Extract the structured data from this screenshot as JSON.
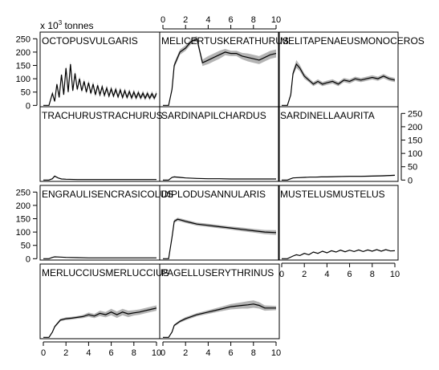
{
  "chart_data": {
    "type": "line",
    "ylabel_prefix": "x 10",
    "ylabel_exponent": "3",
    "ylabel_suffix": " tonnes",
    "x_ticks": [
      0,
      2,
      4,
      6,
      8,
      10
    ],
    "y_ticks": [
      0,
      50,
      100,
      150,
      200,
      250
    ],
    "xlim": [
      0,
      10
    ],
    "ylim": [
      -5,
      275
    ],
    "band_color": "#b4b4b4",
    "line_color": "#000000",
    "panels": [
      {
        "name": "OCTOPUSVULGARIS",
        "x": [
          0,
          0.5,
          0.8,
          1.0,
          1.2,
          1.4,
          1.6,
          1.8,
          2.0,
          2.2,
          2.4,
          2.6,
          2.8,
          3.0,
          3.2,
          3.4,
          3.6,
          3.8,
          4.0,
          4.2,
          4.4,
          4.6,
          4.8,
          5.0,
          5.2,
          5.4,
          5.6,
          5.8,
          6.0,
          6.2,
          6.4,
          6.6,
          6.8,
          7.0,
          7.2,
          7.4,
          7.6,
          7.8,
          8.0,
          8.2,
          8.4,
          8.6,
          8.8,
          9.0,
          9.2,
          9.4,
          9.6,
          9.8,
          10.0
        ],
        "y": [
          0,
          0,
          45,
          15,
          80,
          30,
          115,
          40,
          140,
          50,
          155,
          55,
          120,
          60,
          100,
          55,
          90,
          50,
          85,
          45,
          80,
          40,
          75,
          40,
          70,
          38,
          65,
          35,
          62,
          35,
          60,
          32,
          58,
          30,
          55,
          30,
          52,
          28,
          50,
          28,
          48,
          28,
          46,
          27,
          45,
          27,
          44,
          27,
          45
        ],
        "band": [
          0,
          0,
          3,
          2,
          5,
          3,
          6,
          4,
          8,
          5,
          10,
          6,
          10,
          8,
          10,
          8,
          10,
          8,
          10,
          8,
          10,
          8,
          10,
          8,
          10,
          8,
          10,
          8,
          10,
          8,
          10,
          8,
          10,
          8,
          10,
          8,
          10,
          8,
          10,
          8,
          10,
          8,
          10,
          8,
          10,
          8,
          10,
          8,
          10
        ]
      },
      {
        "name": "MELICERTUSKERATHURUS",
        "x": [
          0,
          0.5,
          0.8,
          1.0,
          1.5,
          2.0,
          2.5,
          3.0,
          3.5,
          4.0,
          4.5,
          5.0,
          5.5,
          6.0,
          6.5,
          7.0,
          7.5,
          8.0,
          8.5,
          9.0,
          9.5,
          10.0
        ],
        "y": [
          0,
          0,
          60,
          150,
          200,
          215,
          240,
          250,
          160,
          170,
          180,
          190,
          200,
          195,
          195,
          185,
          180,
          175,
          170,
          180,
          190,
          195
        ],
        "band": [
          0,
          0,
          5,
          10,
          10,
          10,
          10,
          10,
          12,
          15,
          15,
          15,
          12,
          10,
          10,
          12,
          15,
          15,
          15,
          15,
          15,
          15
        ]
      },
      {
        "name": "MELITAPENAEUSMONOCEROS",
        "x": [
          0,
          0.5,
          0.8,
          1.0,
          1.3,
          1.6,
          2.0,
          2.4,
          2.8,
          3.2,
          3.6,
          4.0,
          4.5,
          5.0,
          5.5,
          6.0,
          6.5,
          7.0,
          7.5,
          8.0,
          8.5,
          9.0,
          9.5,
          10.0
        ],
        "y": [
          0,
          0,
          40,
          120,
          155,
          140,
          110,
          95,
          80,
          90,
          80,
          85,
          90,
          80,
          95,
          90,
          100,
          95,
          100,
          105,
          100,
          110,
          100,
          95
        ],
        "band": [
          0,
          0,
          5,
          10,
          15,
          12,
          10,
          8,
          8,
          8,
          8,
          8,
          8,
          8,
          8,
          8,
          8,
          8,
          8,
          8,
          8,
          8,
          8,
          8
        ]
      },
      {
        "name": "TRACHURUSTRACHURUS",
        "x": [
          0,
          0.5,
          0.8,
          1.0,
          1.3,
          1.6,
          2.0,
          3.0,
          4.0,
          5.0,
          6.0,
          7.0,
          8.0,
          9.0,
          10.0
        ],
        "y": [
          0,
          0,
          5,
          15,
          8,
          4,
          3,
          2,
          2,
          2,
          2,
          2,
          2,
          2,
          2
        ],
        "band": [
          0,
          0,
          1,
          2,
          1,
          1,
          1,
          1,
          1,
          1,
          1,
          1,
          1,
          1,
          1
        ]
      },
      {
        "name": "SARDINAPILCHARDUS",
        "x": [
          0,
          0.5,
          0.8,
          1.0,
          1.5,
          2.0,
          3.0,
          4.0,
          5.0,
          6.0,
          7.0,
          8.0,
          9.0,
          10.0
        ],
        "y": [
          0,
          0,
          10,
          12,
          10,
          8,
          6,
          5,
          5,
          4,
          4,
          4,
          4,
          4
        ],
        "band": [
          0,
          0,
          1,
          2,
          2,
          1,
          1,
          1,
          1,
          1,
          1,
          1,
          1,
          1
        ]
      },
      {
        "name": "SARDINELLAAURITA",
        "x": [
          0,
          0.5,
          0.8,
          1.0,
          1.5,
          2.0,
          2.5,
          3.0,
          3.5,
          4.0,
          5.0,
          6.0,
          7.0,
          8.0,
          9.0,
          10.0
        ],
        "y": [
          0,
          0,
          5,
          8,
          9,
          10,
          11,
          11,
          12,
          12,
          13,
          14,
          14,
          15,
          16,
          18
        ],
        "band": [
          0,
          0,
          1,
          1,
          1,
          1,
          1,
          1,
          1,
          1,
          1,
          2,
          2,
          2,
          2,
          2
        ]
      },
      {
        "name": "ENGRAULISENCRASICOLUS",
        "x": [
          0,
          0.5,
          0.8,
          1.0,
          1.5,
          2.0,
          3.0,
          4.0,
          5.0,
          6.0,
          7.0,
          8.0,
          9.0,
          10.0
        ],
        "y": [
          0,
          0,
          5,
          7,
          6,
          5,
          4,
          3,
          3,
          3,
          3,
          3,
          3,
          3
        ],
        "band": [
          0,
          0,
          1,
          1,
          1,
          1,
          1,
          1,
          1,
          1,
          1,
          1,
          1,
          1
        ]
      },
      {
        "name": "DIPLODUSANNULARIS",
        "x": [
          0,
          0.5,
          0.8,
          1.0,
          1.3,
          1.6,
          2.0,
          2.5,
          3.0,
          4.0,
          5.0,
          6.0,
          7.0,
          8.0,
          9.0,
          10.0
        ],
        "y": [
          0,
          0,
          80,
          140,
          148,
          145,
          140,
          135,
          130,
          125,
          120,
          115,
          110,
          105,
          100,
          98
        ],
        "band": [
          0,
          0,
          4,
          6,
          6,
          6,
          6,
          6,
          6,
          6,
          6,
          6,
          7,
          7,
          8,
          9
        ]
      },
      {
        "name": "MUSTELUSMUSTELUS",
        "x": [
          0,
          0.5,
          1.0,
          1.3,
          1.6,
          2.0,
          2.4,
          2.8,
          3.2,
          3.6,
          4.0,
          4.4,
          4.8,
          5.2,
          5.6,
          6.0,
          6.4,
          6.8,
          7.2,
          7.6,
          8.0,
          8.4,
          8.8,
          9.2,
          9.6,
          10.0
        ],
        "y": [
          0,
          0,
          10,
          15,
          12,
          20,
          15,
          25,
          20,
          28,
          22,
          30,
          25,
          32,
          26,
          32,
          27,
          33,
          27,
          33,
          28,
          34,
          28,
          34,
          29,
          30
        ],
        "band": [
          0,
          0,
          1,
          1,
          1,
          1,
          1,
          1,
          1,
          1,
          1,
          1,
          1,
          1,
          1,
          1,
          1,
          1,
          1,
          1,
          1,
          1,
          1,
          1,
          1,
          1
        ]
      },
      {
        "name": "MERLUCCIUSMERLUCCIUS",
        "x": [
          0,
          0.5,
          0.8,
          1.0,
          1.5,
          2.0,
          2.5,
          3.0,
          3.5,
          4.0,
          4.5,
          5.0,
          5.5,
          6.0,
          6.5,
          7.0,
          7.5,
          8.0,
          8.5,
          9.0,
          9.5,
          10.0
        ],
        "y": [
          0,
          0,
          20,
          40,
          65,
          70,
          72,
          75,
          78,
          85,
          80,
          90,
          85,
          95,
          85,
          95,
          88,
          92,
          95,
          100,
          105,
          110
        ],
        "band": [
          0,
          0,
          2,
          4,
          5,
          5,
          5,
          5,
          6,
          8,
          8,
          10,
          10,
          12,
          12,
          12,
          12,
          10,
          10,
          10,
          10,
          10
        ]
      },
      {
        "name": "PAGELLUSERYTHRINUS",
        "x": [
          0,
          0.5,
          0.8,
          1.0,
          1.5,
          2.0,
          3.0,
          4.0,
          5.0,
          6.0,
          7.0,
          7.5,
          8.0,
          8.5,
          9.0,
          10.0
        ],
        "y": [
          0,
          0,
          20,
          45,
          60,
          70,
          85,
          95,
          105,
          115,
          120,
          122,
          125,
          120,
          110,
          110
        ],
        "band": [
          0,
          0,
          2,
          4,
          5,
          6,
          6,
          7,
          8,
          10,
          12,
          14,
          14,
          12,
          10,
          8
        ]
      }
    ]
  }
}
